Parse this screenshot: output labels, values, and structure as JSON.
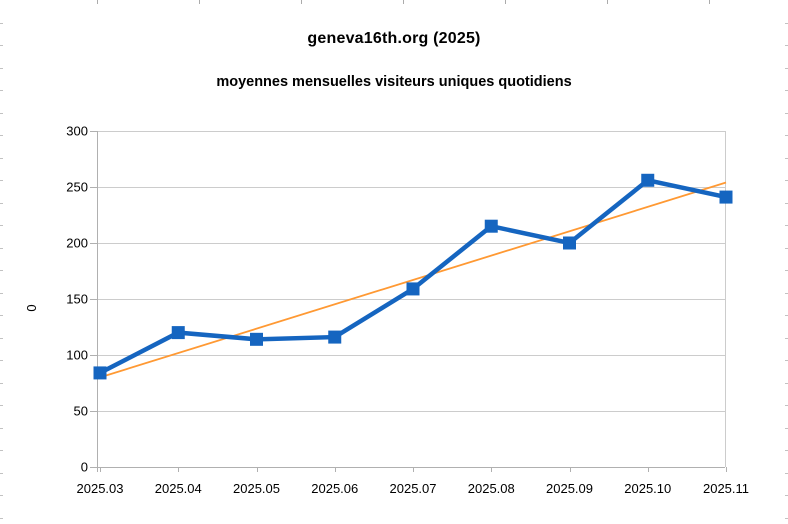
{
  "chart": {
    "title": "geneva16th.org (2025)",
    "subtitle": "moyennes mensuelles visiteurs uniques quotidiens"
  },
  "chart_data": {
    "type": "line",
    "title": "geneva16th.org (2025)",
    "subtitle": "moyennes mensuelles visiteurs uniques quotidiens",
    "categories": [
      "2025.03",
      "2025.04",
      "2025.05",
      "2025.06",
      "2025.07",
      "2025.08",
      "2025.09",
      "2025.10",
      "2025.11"
    ],
    "series": [
      {
        "values": [
          84,
          120,
          114,
          116,
          159,
          215,
          200,
          256,
          241
        ],
        "color": "#1565C0",
        "marker": "square",
        "marker_size": 13,
        "line_width": 4.5
      }
    ],
    "trendline": {
      "start_value": 80,
      "end_value": 254,
      "color": "#FF9933",
      "line_width": 1.8
    },
    "xlabel": "",
    "ylabel": "0",
    "ylim": [
      0,
      300
    ],
    "yticks": [
      0,
      50,
      100,
      150,
      200,
      250,
      300
    ],
    "grid": "horizontal",
    "legend": "none",
    "gridline_color": "#cccccc",
    "axis_color": "#b0b0b0",
    "text_color": "#000000",
    "background": "#ffffff"
  }
}
